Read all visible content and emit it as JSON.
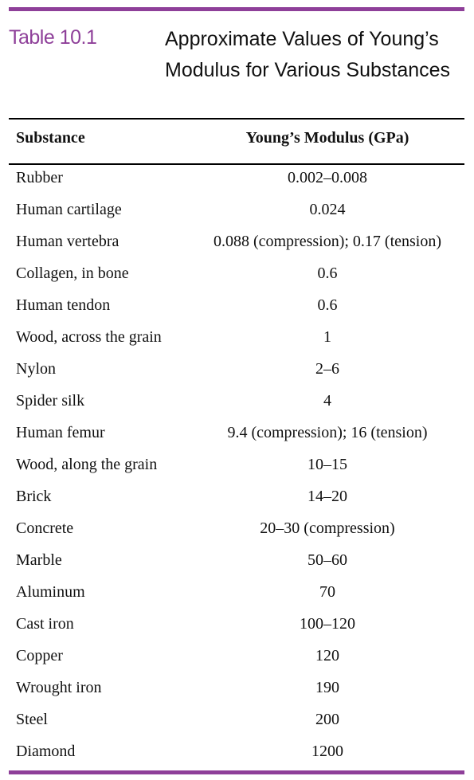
{
  "table": {
    "label": "Table 10.1",
    "title": "Approximate Values of Young’s Modulus for Various Substances",
    "accent_color": "#8e3f99",
    "headers": {
      "substance": "Substance",
      "modulus": "Young’s Modulus (GPa)"
    },
    "rows": [
      {
        "substance": "Rubber",
        "modulus": "0.002–0.008"
      },
      {
        "substance": "Human cartilage",
        "modulus": "0.024"
      },
      {
        "substance": "Human vertebra",
        "modulus": "0.088 (compression); 0.17 (tension)"
      },
      {
        "substance": "Collagen, in bone",
        "modulus": "0.6"
      },
      {
        "substance": "Human tendon",
        "modulus": "0.6"
      },
      {
        "substance": "Wood, across the grain",
        "modulus": "1"
      },
      {
        "substance": "Nylon",
        "modulus": "2–6"
      },
      {
        "substance": "Spider silk",
        "modulus": "4"
      },
      {
        "substance": "Human femur",
        "modulus": "9.4 (compression); 16 (tension)"
      },
      {
        "substance": "Wood, along the grain",
        "modulus": "10–15"
      },
      {
        "substance": "Brick",
        "modulus": "14–20"
      },
      {
        "substance": "Concrete",
        "modulus": "20–30 (compression)"
      },
      {
        "substance": "Marble",
        "modulus": "50–60"
      },
      {
        "substance": "Aluminum",
        "modulus": "70"
      },
      {
        "substance": "Cast iron",
        "modulus": "100–120"
      },
      {
        "substance": "Copper",
        "modulus": "120"
      },
      {
        "substance": "Wrought iron",
        "modulus": "190"
      },
      {
        "substance": "Steel",
        "modulus": "200"
      },
      {
        "substance": "Diamond",
        "modulus": "1200"
      }
    ]
  }
}
